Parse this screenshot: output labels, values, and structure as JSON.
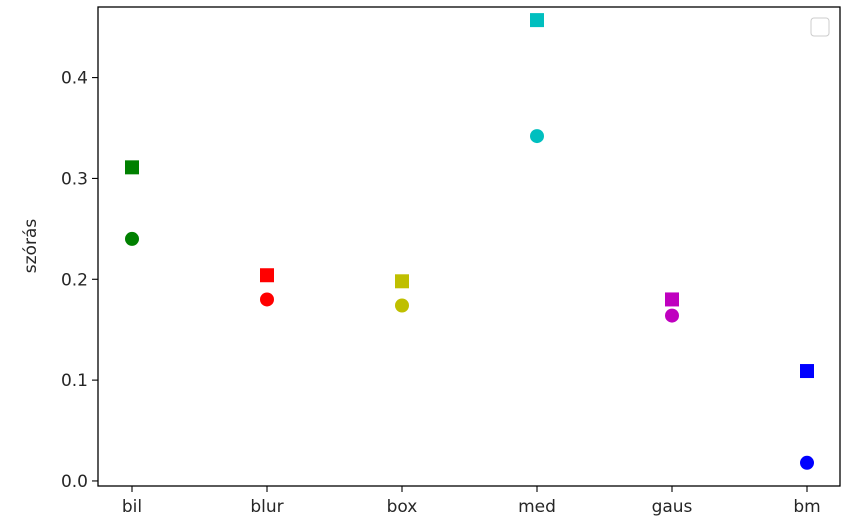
{
  "chart_data": {
    "type": "scatter",
    "title": "",
    "xlabel": "",
    "ylabel": "szórás",
    "categories": [
      "bil",
      "blur",
      "box",
      "med",
      "gaus",
      "bm"
    ],
    "ylim": [
      -0.005,
      0.47
    ],
    "yticks": [
      0.0,
      0.1,
      0.2,
      0.3,
      0.4
    ],
    "ytick_labels": [
      "0.0",
      "0.1",
      "0.2",
      "0.3",
      "0.4"
    ],
    "grid": false,
    "legend": {
      "position": "top-right",
      "entries": []
    },
    "colors": [
      "#008000",
      "#ff0000",
      "#bfbf00",
      "#00bfbf",
      "#bf00bf",
      "#0000ff"
    ],
    "series": [
      {
        "marker": "square",
        "values": [
          0.311,
          0.204,
          0.198,
          0.457,
          0.18,
          0.109
        ]
      },
      {
        "marker": "circle",
        "values": [
          0.24,
          0.18,
          0.174,
          0.342,
          0.164,
          0.018
        ]
      }
    ]
  }
}
